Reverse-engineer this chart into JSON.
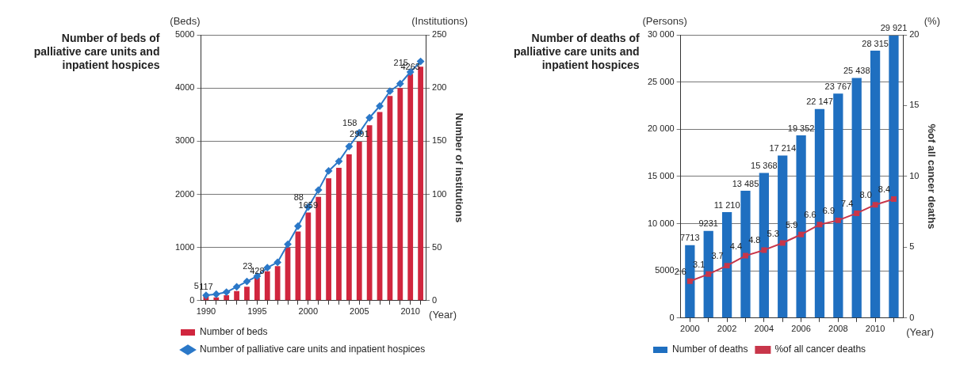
{
  "chart_data": [
    {
      "type": "bar",
      "title": "Number of beds of palliative care units and inpatient hospices",
      "ylabel": "(Beds)",
      "y2label": "Number of institutions",
      "xlabel": "(Year)",
      "annotations": [
        "(Institutions)"
      ],
      "categories": [
        "1990",
        null,
        null,
        null,
        null,
        "1995",
        null,
        null,
        null,
        null,
        "2000",
        null,
        null,
        null,
        null,
        "2005",
        null,
        null,
        null,
        null,
        "2010",
        null
      ],
      "series": [
        {
          "name": "Number of beds",
          "color": "#d0263e",
          "values": [
            117,
            60,
            100,
            180,
            260,
            428,
            550,
            650,
            1000,
            1300,
            1659,
            1950,
            2300,
            2500,
            2750,
            2991,
            3300,
            3550,
            3850,
            4000,
            4263,
            4400
          ],
          "value_labels": [
            "117",
            null,
            null,
            null,
            null,
            "428",
            null,
            null,
            null,
            null,
            "1659",
            null,
            null,
            null,
            null,
            "2991",
            null,
            null,
            null,
            null,
            "4263",
            null
          ]
        },
        {
          "name": "Number of palliative care units and inpatient hospices",
          "type": "line",
          "axis": "y2",
          "color": "#2b78c8",
          "marker": "diamond",
          "values": [
            5,
            6,
            8,
            13,
            18,
            23,
            31,
            36,
            53,
            70,
            88,
            104,
            122,
            131,
            145,
            158,
            172,
            183,
            197,
            204,
            215,
            225
          ],
          "value_labels": [
            "5",
            null,
            null,
            null,
            null,
            "23",
            null,
            null,
            null,
            null,
            "88",
            null,
            null,
            null,
            null,
            "158",
            null,
            null,
            null,
            null,
            "215",
            null
          ]
        }
      ],
      "ylim": [
        0,
        5000
      ],
      "yticks": [
        0,
        1000,
        2000,
        3000,
        4000,
        5000
      ],
      "y2lim": [
        0,
        250
      ],
      "y2ticks": [
        0,
        50,
        100,
        150,
        200,
        250
      ],
      "grid": "y",
      "legend": "bottom"
    },
    {
      "type": "bar",
      "title": "Number of deaths of palliative care units and inpatient hospices",
      "ylabel": "(Persons)",
      "y2label": "%of all cancer deaths",
      "xlabel": "(Year)",
      "annotations": [
        "(%)"
      ],
      "categories": [
        "2000",
        null,
        "2002",
        null,
        "2004",
        null,
        "2006",
        null,
        "2008",
        null,
        "2010",
        null
      ],
      "series": [
        {
          "name": "Number of deaths",
          "color": "#1f6fc0",
          "values": [
            7713,
            9231,
            11210,
            13485,
            15368,
            17214,
            19352,
            22147,
            23767,
            25438,
            28315,
            29921
          ],
          "value_labels": [
            "7713",
            "9231",
            "11 210",
            "13 485",
            "15 368",
            "17 214",
            "19 352",
            "22 147",
            "23 767",
            "25 438",
            "28 315",
            "29 921"
          ]
        },
        {
          "name": "%of all cancer deaths",
          "type": "line",
          "axis": "y2",
          "color": "#c8364a",
          "marker": "square",
          "values": [
            2.6,
            3.1,
            3.7,
            4.4,
            4.8,
            5.3,
            5.9,
            6.6,
            6.9,
            7.4,
            8.0,
            8.4
          ],
          "value_labels": [
            "2.6",
            "3.1",
            "3.7",
            "4.4",
            "4.8",
            "5.3",
            "5.9",
            "6.6",
            "6.9",
            "7.4",
            "8.0",
            "8.4"
          ]
        }
      ],
      "ylim": [
        0,
        30000
      ],
      "yticks": [
        0,
        5000,
        {
          "value": 10000,
          "label": "10 000"
        },
        {
          "value": 15000,
          "label": "15 000"
        },
        {
          "value": 20000,
          "label": "20 000"
        },
        {
          "value": 25000,
          "label": "25 000"
        },
        {
          "value": 30000,
          "label": "30 000"
        }
      ],
      "y2lim": [
        0,
        20
      ],
      "y2ticks": [
        0,
        5,
        10,
        15,
        20
      ],
      "grid": "y",
      "legend": "bottom"
    }
  ]
}
